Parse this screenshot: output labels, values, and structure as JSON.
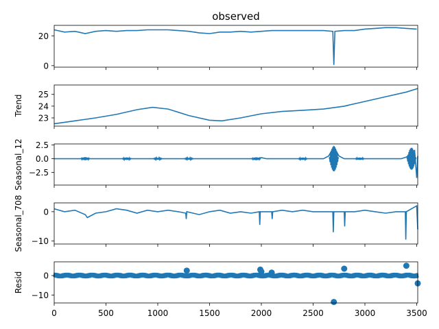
{
  "figure": {
    "title": "observed",
    "line_color": "#1f77b4",
    "axis_color": "#000000",
    "background": "#ffffff"
  },
  "chart_data": [
    {
      "type": "line",
      "name": "observed",
      "ylabel": "",
      "xlim": [
        0,
        3510
      ],
      "ylim": [
        -1,
        27
      ],
      "yticks": [
        0,
        20
      ],
      "ytick_labels": [
        "0",
        "20"
      ],
      "x": [
        0,
        100,
        200,
        300,
        400,
        500,
        600,
        700,
        800,
        900,
        1000,
        1100,
        1200,
        1300,
        1400,
        1500,
        1600,
        1700,
        1800,
        1900,
        2000,
        2100,
        2200,
        2300,
        2400,
        2500,
        2600,
        2690,
        2700,
        2710,
        2800,
        2900,
        3000,
        3100,
        3200,
        3300,
        3400,
        3500
      ],
      "y": [
        24,
        22.5,
        23,
        21.5,
        23,
        23.5,
        23,
        23.5,
        23.5,
        24,
        24,
        24,
        23.5,
        23,
        22,
        21.5,
        22.5,
        22.5,
        23,
        22.5,
        23,
        23.5,
        23.5,
        23.5,
        23.5,
        23.5,
        23.5,
        23,
        0.5,
        23,
        23.5,
        23.5,
        24.5,
        25,
        25.5,
        25.5,
        25,
        24.5
      ]
    },
    {
      "type": "line",
      "name": "trend",
      "ylabel": "Trend",
      "xlim": [
        0,
        3510
      ],
      "ylim": [
        22.3,
        25.8
      ],
      "yticks": [
        23,
        24,
        25
      ],
      "ytick_labels": [
        "23",
        "24",
        "25"
      ],
      "x": [
        0,
        200,
        400,
        600,
        800,
        950,
        1100,
        1300,
        1500,
        1620,
        1800,
        2000,
        2200,
        2400,
        2600,
        2800,
        3000,
        3200,
        3400,
        3510
      ],
      "y": [
        22.5,
        22.75,
        23.0,
        23.3,
        23.7,
        23.9,
        23.75,
        23.2,
        22.8,
        22.75,
        23.0,
        23.35,
        23.55,
        23.65,
        23.75,
        24.0,
        24.4,
        24.8,
        25.2,
        25.5
      ]
    },
    {
      "type": "line",
      "name": "seasonal_12",
      "ylabel": "Seasonal_12",
      "xlim": [
        0,
        3510
      ],
      "ylim": [
        -4.8,
        2.7
      ],
      "yticks": [
        -2.5,
        0.0,
        2.5
      ],
      "ytick_labels": [
        "−2.5",
        "0.0",
        "2.5"
      ],
      "bursts": [
        {
          "x": 300,
          "amp": 0.25
        },
        {
          "x": 700,
          "amp": 0.2
        },
        {
          "x": 1000,
          "amp": 0.15
        },
        {
          "x": 1300,
          "amp": 0.15
        },
        {
          "x": 1950,
          "amp": 0.25
        },
        {
          "x": 2400,
          "amp": 0.2
        },
        {
          "x": 2700,
          "amp": 2.3
        },
        {
          "x": 2950,
          "amp": 0.2
        },
        {
          "x": 3450,
          "amp": 2.0
        }
      ],
      "x": [
        0,
        250,
        300,
        350,
        650,
        700,
        750,
        1950,
        2000,
        2050,
        2600,
        2650,
        2700,
        2750,
        2800,
        3350,
        3400,
        3450,
        3480,
        3500,
        3510
      ],
      "y": [
        0,
        0,
        0.2,
        0,
        0,
        0.15,
        0,
        0,
        0.2,
        0,
        0,
        0.5,
        2.2,
        0.5,
        0,
        0,
        0.3,
        1.0,
        1.5,
        -3.5,
        0.5
      ]
    },
    {
      "type": "line",
      "name": "seasonal_708",
      "ylabel": "Seasonal_708",
      "xlim": [
        0,
        3510
      ],
      "ylim": [
        -11,
        3
      ],
      "yticks": [
        -10,
        0
      ],
      "ytick_labels": [
        "−10",
        "0"
      ],
      "x": [
        0,
        100,
        200,
        300,
        320,
        400,
        500,
        600,
        700,
        800,
        900,
        1000,
        1100,
        1200,
        1270,
        1275,
        1280,
        1400,
        1500,
        1600,
        1700,
        1800,
        1900,
        1980,
        1985,
        1990,
        2100,
        2105,
        2110,
        2200,
        2300,
        2400,
        2500,
        2600,
        2690,
        2695,
        2700,
        2800,
        2805,
        2810,
        2900,
        3000,
        3100,
        3200,
        3300,
        3390,
        3395,
        3400,
        3450,
        3500,
        3510
      ],
      "y": [
        1,
        0,
        0.5,
        -1,
        -2,
        -0.5,
        0,
        1,
        0.5,
        -0.5,
        0.5,
        0,
        0.5,
        0,
        -0.5,
        -2.5,
        0,
        -1,
        0,
        0.5,
        -0.5,
        0,
        -0.5,
        0,
        -4.5,
        0,
        0,
        -2.5,
        0,
        0.5,
        0,
        0.5,
        0,
        0,
        0,
        -7,
        0,
        0,
        -5,
        0,
        0,
        0.5,
        0,
        -0.5,
        0,
        0,
        -9.5,
        0,
        1,
        2,
        -6
      ]
    },
    {
      "type": "scatter",
      "name": "resid",
      "ylabel": "Resid",
      "xlim": [
        0,
        3510
      ],
      "ylim": [
        -14,
        7
      ],
      "yticks": [
        -10,
        0
      ],
      "ytick_labels": [
        "−10",
        "0"
      ],
      "x": [
        1280,
        1990,
        2000,
        2100,
        2700,
        2800,
        3400,
        3510
      ],
      "y": [
        2.5,
        3,
        2,
        1.5,
        -13.5,
        3.5,
        5,
        -4
      ]
    }
  ],
  "xaxis": {
    "ticks": [
      0,
      500,
      1000,
      1500,
      2000,
      2500,
      3000,
      3500
    ],
    "labels": [
      "0",
      "500",
      "1000",
      "1500",
      "2000",
      "2500",
      "3000",
      "3500"
    ]
  }
}
